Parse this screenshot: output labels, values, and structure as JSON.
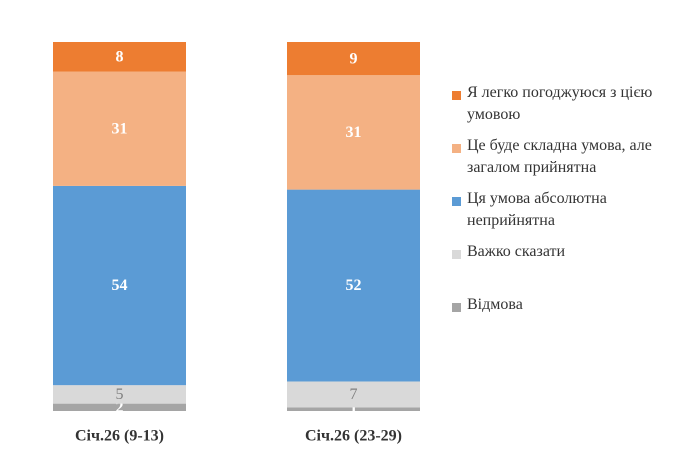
{
  "chart_data": {
    "type": "stacked_bar",
    "categories": [
      "Січ.26 (9-13)",
      "Січ.26 (23-29)"
    ],
    "ylim": [
      0,
      100
    ],
    "series": [
      {
        "name": "Я легко погоджуюся з цією умовою",
        "color": "#ed7d31",
        "values": [
          8,
          9
        ]
      },
      {
        "name": "Це буде складна умова, але загалом прийнятна",
        "color": "#f4b183",
        "values": [
          31,
          31
        ]
      },
      {
        "name": "Ця умова абсолютна неприйнятна",
        "color": "#5b9bd5",
        "values": [
          54,
          52
        ]
      },
      {
        "name": "Важко сказати",
        "color": "#d9d9d9",
        "values": [
          5,
          7
        ]
      },
      {
        "name": "Відмова",
        "color": "#a5a5a5",
        "values": [
          2,
          1
        ]
      }
    ]
  }
}
